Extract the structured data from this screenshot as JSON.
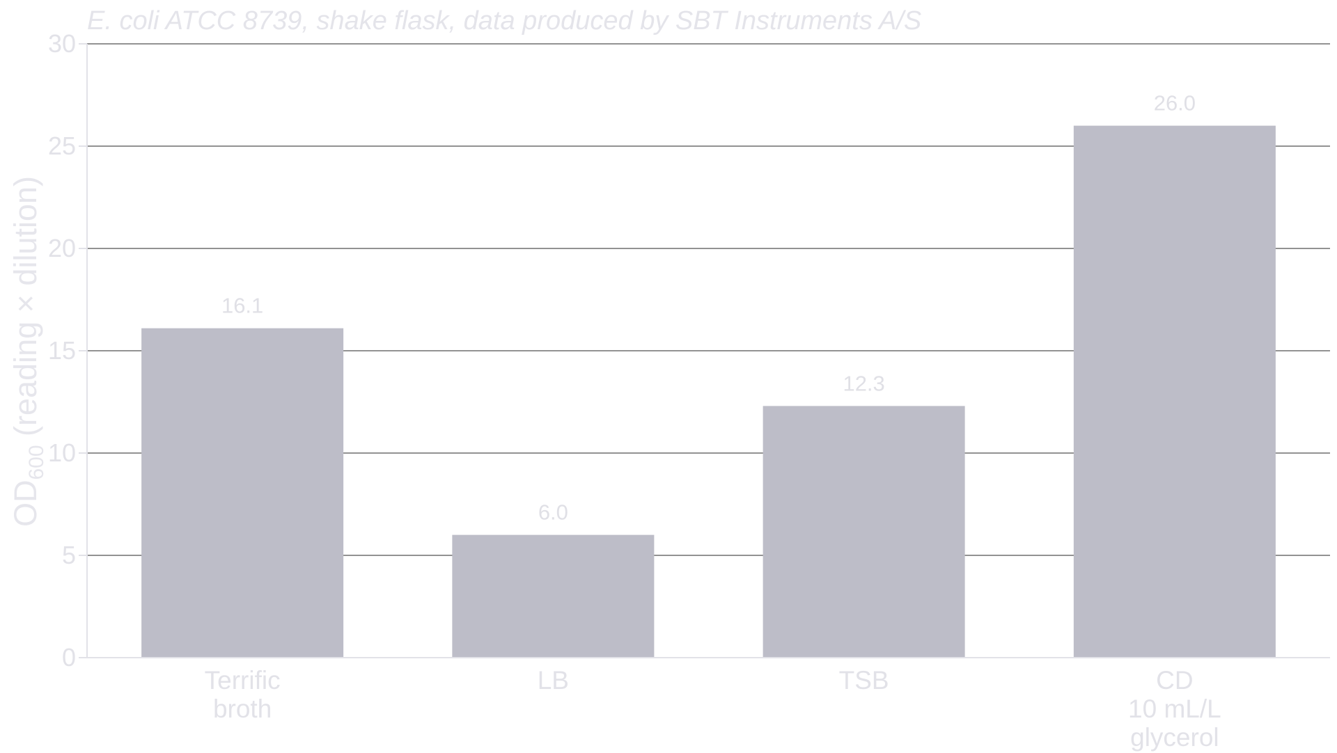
{
  "chart_data": {
    "type": "bar",
    "subtitle": "E. coli ATCC 8739, shake flask, data produced by SBT Instruments A/S",
    "ylabel": {
      "main": "OD",
      "subscript": "600",
      "rest": " (reading × dilution)"
    },
    "categories": [
      [
        "Terrific",
        "broth"
      ],
      [
        "LB"
      ],
      [
        "TSB"
      ],
      [
        "CD",
        "10 mL/L",
        "glycerol"
      ]
    ],
    "values": [
      16.1,
      6.0,
      12.3,
      26.0
    ],
    "value_labels": [
      "16.1",
      "6.0",
      "12.3",
      "26.0"
    ],
    "ylim": [
      0,
      30
    ],
    "yticks": [
      0,
      5,
      10,
      15,
      20,
      25,
      30
    ],
    "grid": true,
    "colors": {
      "bar": "#bdbdc8",
      "grid": "#6f6f6f",
      "axis": "#e2e2e8"
    }
  }
}
